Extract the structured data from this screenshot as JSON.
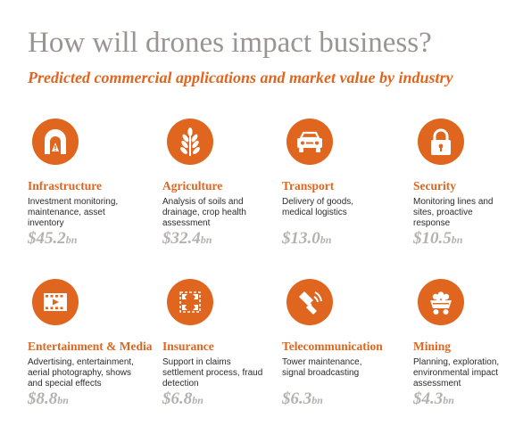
{
  "title": "How will drones impact business?",
  "subtitle": "Predicted commercial applications and market value by industry",
  "accent_color": "#e0661f",
  "industries": [
    {
      "name": "Infrastructure",
      "icon": "tunnel-icon",
      "description": "Investment monitoring, maintenance, asset inventory",
      "value": "$45.2",
      "unit": "bn"
    },
    {
      "name": "Agriculture",
      "icon": "wheat-icon",
      "description": "Analysis of soils and drainage, crop health assessment",
      "value": "$32.4",
      "unit": "bn"
    },
    {
      "name": "Transport",
      "icon": "car-icon",
      "description": "Delivery of goods, medical logistics",
      "value": "$13.0",
      "unit": "bn"
    },
    {
      "name": "Security",
      "icon": "padlock-icon",
      "description": "Monitoring lines and sites, proactive response",
      "value": "$10.5",
      "unit": "bn"
    },
    {
      "name": "Entertainment & Media",
      "icon": "film-strip-icon",
      "description": "Advertising, entertainment, aerial photography, shows and special effects",
      "value": "$8.8",
      "unit": "bn"
    },
    {
      "name": "Insurance",
      "icon": "damaged-frame-icon",
      "description": "Support in claims settlement process, fraud detection",
      "value": "$6.8",
      "unit": "bn"
    },
    {
      "name": "Telecommunication",
      "icon": "satellite-signal-icon",
      "description": "Tower maintenance, signal broadcasting",
      "value": "$6.3",
      "unit": "bn"
    },
    {
      "name": "Mining",
      "icon": "mine-cart-icon",
      "description": "Planning, exploration, environmental impact assessment",
      "value": "$4.3",
      "unit": "bn"
    }
  ]
}
